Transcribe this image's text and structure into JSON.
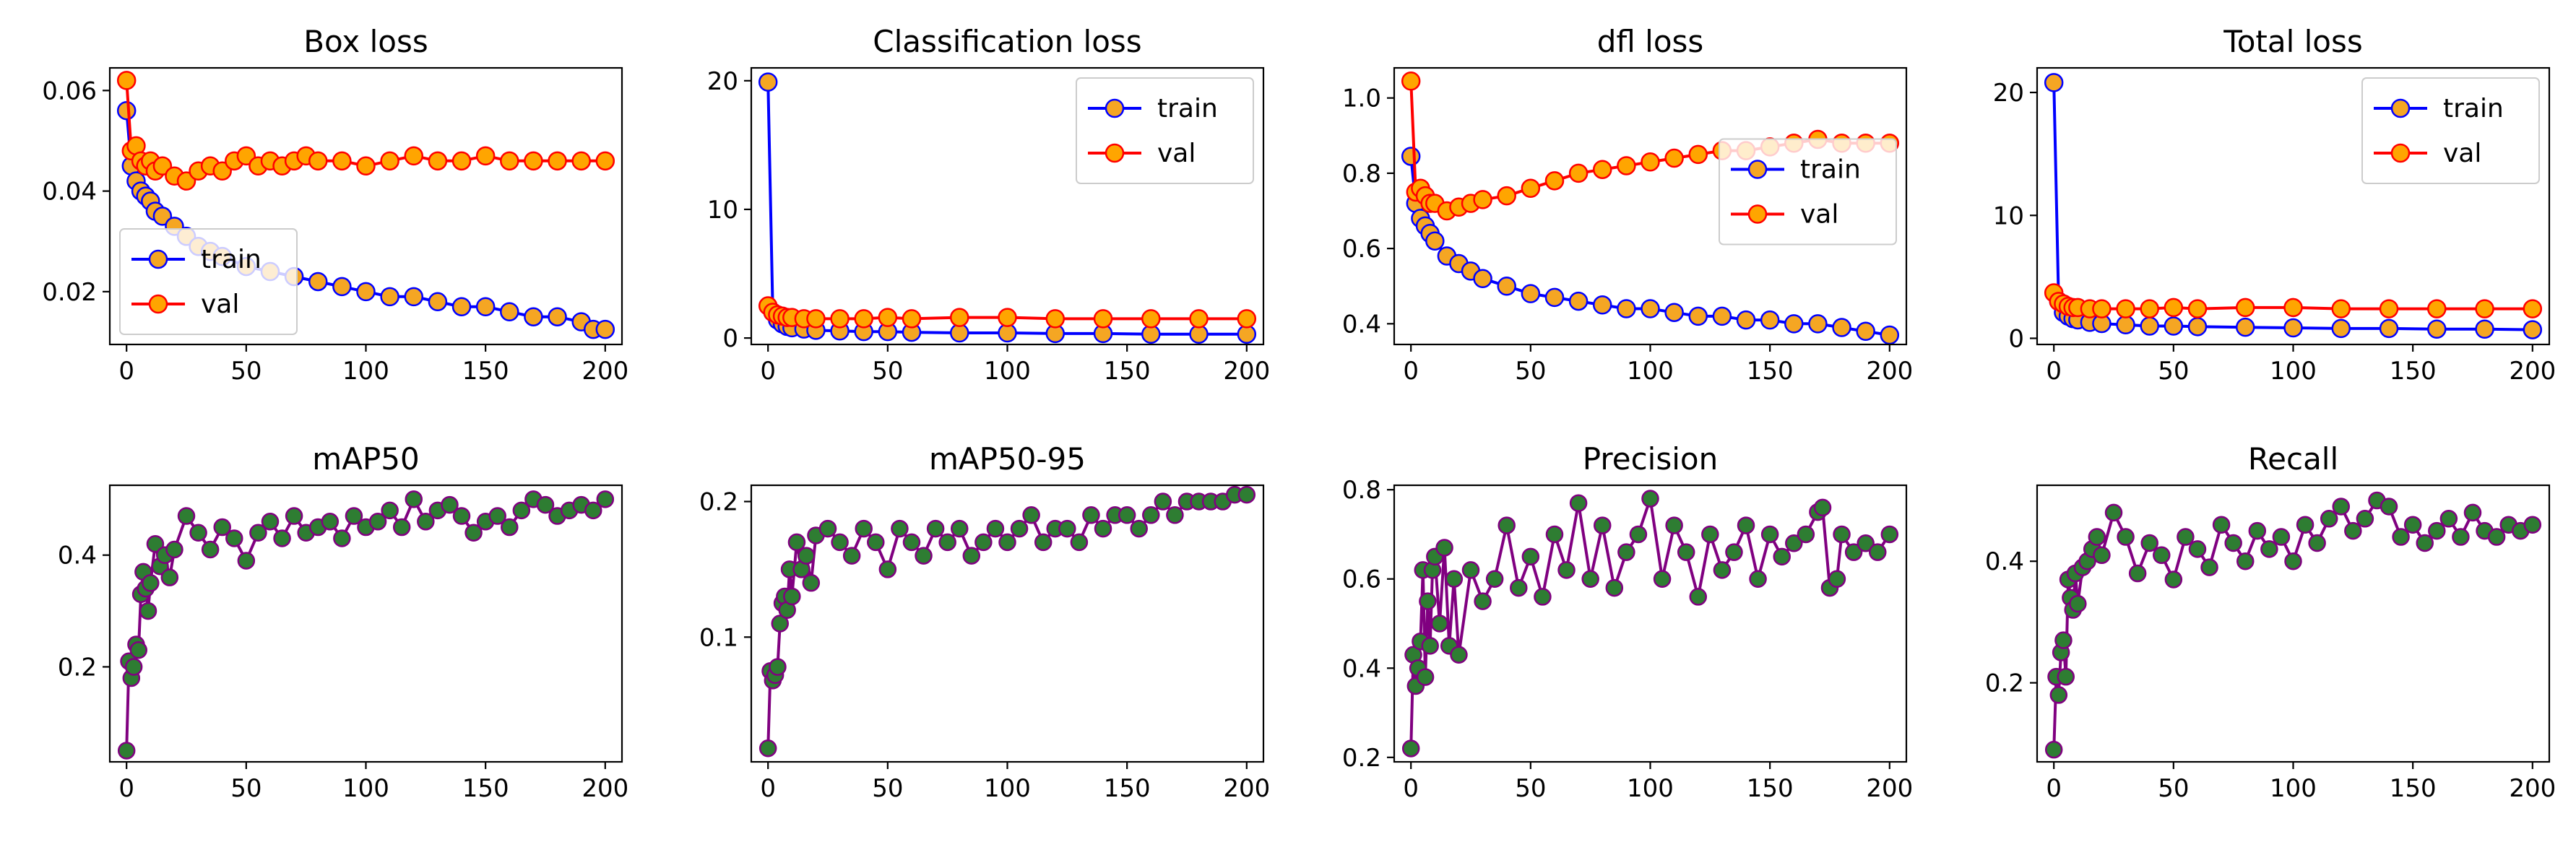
{
  "colors": {
    "train_line": "#0000ff",
    "train_marker_face": "#f5a623",
    "val_line": "#ff0000",
    "val_marker_face": "#ffa500",
    "metric_line": "#800080",
    "metric_marker_face": "#2e7d32"
  },
  "chart_data": [
    {
      "type": "line",
      "title": "Box loss",
      "xlim": [
        -7,
        207
      ],
      "ylim": [
        0.0095,
        0.0645
      ],
      "xticks": [
        0,
        50,
        100,
        150,
        200
      ],
      "yticks": [
        0.02,
        0.04,
        0.06
      ],
      "ytick_labels": [
        "0.02",
        "0.04",
        "0.06"
      ],
      "legend": "lower-left",
      "series": [
        {
          "name": "train",
          "role": "train",
          "x": [
            0,
            2,
            4,
            6,
            8,
            10,
            12,
            15,
            20,
            25,
            30,
            35,
            40,
            50,
            60,
            70,
            80,
            90,
            100,
            110,
            120,
            130,
            140,
            150,
            160,
            170,
            180,
            190,
            195,
            200
          ],
          "y": [
            0.056,
            0.045,
            0.042,
            0.04,
            0.039,
            0.038,
            0.036,
            0.035,
            0.033,
            0.031,
            0.029,
            0.028,
            0.027,
            0.025,
            0.024,
            0.023,
            0.022,
            0.021,
            0.02,
            0.019,
            0.019,
            0.018,
            0.017,
            0.017,
            0.016,
            0.015,
            0.015,
            0.014,
            0.0125,
            0.0125
          ]
        },
        {
          "name": "val",
          "role": "val",
          "x": [
            0,
            2,
            4,
            6,
            8,
            10,
            12,
            15,
            20,
            25,
            30,
            35,
            40,
            45,
            50,
            55,
            60,
            65,
            70,
            75,
            80,
            90,
            100,
            110,
            120,
            130,
            140,
            150,
            160,
            170,
            180,
            190,
            200
          ],
          "y": [
            0.062,
            0.048,
            0.049,
            0.046,
            0.045,
            0.046,
            0.044,
            0.045,
            0.043,
            0.042,
            0.044,
            0.045,
            0.044,
            0.046,
            0.047,
            0.045,
            0.046,
            0.045,
            0.046,
            0.047,
            0.046,
            0.046,
            0.045,
            0.046,
            0.047,
            0.046,
            0.046,
            0.047,
            0.046,
            0.046,
            0.046,
            0.046,
            0.046
          ]
        }
      ]
    },
    {
      "type": "line",
      "title": "Classification loss",
      "xlim": [
        -7,
        207
      ],
      "ylim": [
        -0.5,
        21
      ],
      "xticks": [
        0,
        50,
        100,
        150,
        200
      ],
      "yticks": [
        0,
        10,
        20
      ],
      "ytick_labels": [
        "0",
        "10",
        "20"
      ],
      "legend": "upper-right",
      "series": [
        {
          "name": "train",
          "role": "train",
          "x": [
            0,
            2,
            4,
            6,
            8,
            10,
            15,
            20,
            30,
            40,
            50,
            60,
            80,
            100,
            120,
            140,
            160,
            180,
            200
          ],
          "y": [
            19.9,
            2.0,
            1.4,
            1.1,
            0.9,
            0.8,
            0.7,
            0.6,
            0.55,
            0.5,
            0.5,
            0.45,
            0.4,
            0.4,
            0.35,
            0.35,
            0.3,
            0.3,
            0.3
          ]
        },
        {
          "name": "val",
          "role": "val",
          "x": [
            0,
            2,
            4,
            6,
            8,
            10,
            15,
            20,
            30,
            40,
            50,
            60,
            80,
            100,
            120,
            140,
            160,
            180,
            200
          ],
          "y": [
            2.5,
            2.0,
            1.8,
            1.7,
            1.6,
            1.6,
            1.5,
            1.5,
            1.5,
            1.5,
            1.6,
            1.5,
            1.6,
            1.6,
            1.5,
            1.5,
            1.5,
            1.5,
            1.5
          ]
        }
      ]
    },
    {
      "type": "line",
      "title": "dfl loss",
      "xlim": [
        -7,
        207
      ],
      "ylim": [
        0.345,
        1.08
      ],
      "xticks": [
        0,
        50,
        100,
        150,
        200
      ],
      "yticks": [
        0.4,
        0.6,
        0.8,
        1.0
      ],
      "ytick_labels": [
        "0.4",
        "0.6",
        "0.8",
        "1.0"
      ],
      "legend": "center-right",
      "series": [
        {
          "name": "train",
          "role": "train",
          "x": [
            0,
            2,
            4,
            6,
            8,
            10,
            15,
            20,
            25,
            30,
            40,
            50,
            60,
            70,
            80,
            90,
            100,
            110,
            120,
            130,
            140,
            150,
            160,
            170,
            180,
            190,
            200
          ],
          "y": [
            0.845,
            0.72,
            0.68,
            0.66,
            0.64,
            0.62,
            0.58,
            0.56,
            0.54,
            0.52,
            0.5,
            0.48,
            0.47,
            0.46,
            0.45,
            0.44,
            0.44,
            0.43,
            0.42,
            0.42,
            0.41,
            0.41,
            0.4,
            0.4,
            0.39,
            0.38,
            0.37
          ]
        },
        {
          "name": "val",
          "role": "val",
          "x": [
            0,
            2,
            4,
            6,
            8,
            10,
            15,
            20,
            25,
            30,
            40,
            50,
            60,
            70,
            80,
            90,
            100,
            110,
            120,
            130,
            140,
            150,
            160,
            170,
            180,
            190,
            200
          ],
          "y": [
            1.045,
            0.75,
            0.76,
            0.74,
            0.72,
            0.72,
            0.7,
            0.71,
            0.72,
            0.73,
            0.74,
            0.76,
            0.78,
            0.8,
            0.81,
            0.82,
            0.83,
            0.84,
            0.85,
            0.86,
            0.86,
            0.87,
            0.88,
            0.89,
            0.88,
            0.88,
            0.88
          ]
        }
      ]
    },
    {
      "type": "line",
      "title": "Total loss",
      "xlim": [
        -7,
        207
      ],
      "ylim": [
        -0.5,
        22
      ],
      "xticks": [
        0,
        50,
        100,
        150,
        200
      ],
      "yticks": [
        0,
        10,
        20
      ],
      "ytick_labels": [
        "0",
        "10",
        "20"
      ],
      "legend": "upper-right",
      "series": [
        {
          "name": "train",
          "role": "train",
          "x": [
            0,
            2,
            4,
            6,
            8,
            10,
            15,
            20,
            30,
            40,
            50,
            60,
            80,
            100,
            120,
            140,
            160,
            180,
            200
          ],
          "y": [
            20.8,
            3.0,
            2.1,
            1.8,
            1.6,
            1.5,
            1.3,
            1.2,
            1.1,
            1.0,
            1.0,
            0.95,
            0.9,
            0.85,
            0.8,
            0.8,
            0.75,
            0.75,
            0.7
          ]
        },
        {
          "name": "val",
          "role": "val",
          "x": [
            0,
            2,
            4,
            6,
            8,
            10,
            15,
            20,
            30,
            40,
            50,
            60,
            80,
            100,
            120,
            140,
            160,
            180,
            200
          ],
          "y": [
            3.7,
            3.0,
            2.8,
            2.6,
            2.5,
            2.5,
            2.4,
            2.4,
            2.4,
            2.4,
            2.5,
            2.4,
            2.5,
            2.5,
            2.4,
            2.4,
            2.4,
            2.4,
            2.4
          ]
        }
      ]
    },
    {
      "type": "line",
      "title": "mAP50",
      "xlim": [
        -7,
        207
      ],
      "ylim": [
        0.03,
        0.525
      ],
      "xticks": [
        0,
        50,
        100,
        150,
        200
      ],
      "yticks": [
        0.2,
        0.4
      ],
      "ytick_labels": [
        "0.2",
        "0.4"
      ],
      "legend": "none",
      "series": [
        {
          "role": "metric",
          "x": [
            0,
            1,
            2,
            3,
            4,
            5,
            6,
            7,
            8,
            9,
            10,
            12,
            14,
            16,
            18,
            20,
            25,
            30,
            35,
            40,
            45,
            50,
            55,
            60,
            65,
            70,
            75,
            80,
            85,
            90,
            95,
            100,
            105,
            110,
            115,
            120,
            125,
            130,
            135,
            140,
            145,
            150,
            155,
            160,
            165,
            170,
            175,
            180,
            185,
            190,
            195,
            200
          ],
          "y": [
            0.05,
            0.21,
            0.18,
            0.2,
            0.24,
            0.23,
            0.33,
            0.37,
            0.34,
            0.3,
            0.35,
            0.42,
            0.38,
            0.4,
            0.36,
            0.41,
            0.47,
            0.44,
            0.41,
            0.45,
            0.43,
            0.39,
            0.44,
            0.46,
            0.43,
            0.47,
            0.44,
            0.45,
            0.46,
            0.43,
            0.47,
            0.45,
            0.46,
            0.48,
            0.45,
            0.5,
            0.46,
            0.48,
            0.49,
            0.47,
            0.44,
            0.46,
            0.47,
            0.45,
            0.48,
            0.5,
            0.49,
            0.47,
            0.48,
            0.49,
            0.48,
            0.5
          ]
        }
      ]
    },
    {
      "type": "line",
      "title": "mAP50-95",
      "xlim": [
        -7,
        207
      ],
      "ylim": [
        0.008,
        0.212
      ],
      "xticks": [
        0,
        50,
        100,
        150,
        200
      ],
      "yticks": [
        0.1,
        0.2
      ],
      "ytick_labels": [
        "0.1",
        "0.2"
      ],
      "legend": "none",
      "series": [
        {
          "role": "metric",
          "x": [
            0,
            1,
            2,
            3,
            4,
            5,
            6,
            7,
            8,
            9,
            10,
            12,
            14,
            16,
            18,
            20,
            25,
            30,
            35,
            40,
            45,
            50,
            55,
            60,
            65,
            70,
            75,
            80,
            85,
            90,
            95,
            100,
            105,
            110,
            115,
            120,
            125,
            130,
            135,
            140,
            145,
            150,
            155,
            160,
            165,
            170,
            175,
            180,
            185,
            190,
            195,
            200
          ],
          "y": [
            0.018,
            0.075,
            0.068,
            0.072,
            0.078,
            0.11,
            0.125,
            0.13,
            0.12,
            0.15,
            0.13,
            0.17,
            0.15,
            0.16,
            0.14,
            0.175,
            0.18,
            0.17,
            0.16,
            0.18,
            0.17,
            0.15,
            0.18,
            0.17,
            0.16,
            0.18,
            0.17,
            0.18,
            0.16,
            0.17,
            0.18,
            0.17,
            0.18,
            0.19,
            0.17,
            0.18,
            0.18,
            0.17,
            0.19,
            0.18,
            0.19,
            0.19,
            0.18,
            0.19,
            0.2,
            0.19,
            0.2,
            0.2,
            0.2,
            0.2,
            0.205,
            0.205
          ]
        }
      ]
    },
    {
      "type": "line",
      "title": "Precision",
      "xlim": [
        -7,
        207
      ],
      "ylim": [
        0.19,
        0.81
      ],
      "xticks": [
        0,
        50,
        100,
        150,
        200
      ],
      "yticks": [
        0.2,
        0.4,
        0.6,
        0.8
      ],
      "ytick_labels": [
        "0.2",
        "0.4",
        "0.6",
        "0.8"
      ],
      "legend": "none",
      "series": [
        {
          "role": "metric",
          "x": [
            0,
            1,
            2,
            3,
            4,
            5,
            6,
            7,
            8,
            9,
            10,
            12,
            14,
            16,
            18,
            20,
            25,
            30,
            35,
            40,
            45,
            50,
            55,
            60,
            65,
            70,
            75,
            80,
            85,
            90,
            95,
            100,
            105,
            110,
            115,
            120,
            125,
            130,
            135,
            140,
            145,
            150,
            155,
            160,
            165,
            170,
            172,
            175,
            178,
            180,
            185,
            190,
            195,
            200
          ],
          "y": [
            0.22,
            0.43,
            0.36,
            0.4,
            0.46,
            0.62,
            0.38,
            0.55,
            0.45,
            0.62,
            0.65,
            0.5,
            0.67,
            0.45,
            0.6,
            0.43,
            0.62,
            0.55,
            0.6,
            0.72,
            0.58,
            0.65,
            0.56,
            0.7,
            0.62,
            0.77,
            0.6,
            0.72,
            0.58,
            0.66,
            0.7,
            0.78,
            0.6,
            0.72,
            0.66,
            0.56,
            0.7,
            0.62,
            0.66,
            0.72,
            0.6,
            0.7,
            0.65,
            0.68,
            0.7,
            0.75,
            0.76,
            0.58,
            0.6,
            0.7,
            0.66,
            0.68,
            0.66,
            0.7
          ]
        }
      ]
    },
    {
      "type": "line",
      "title": "Recall",
      "xlim": [
        -7,
        207
      ],
      "ylim": [
        0.07,
        0.525
      ],
      "xticks": [
        0,
        50,
        100,
        150,
        200
      ],
      "yticks": [
        0.2,
        0.4
      ],
      "ytick_labels": [
        "0.2",
        "0.4"
      ],
      "legend": "none",
      "series": [
        {
          "role": "metric",
          "x": [
            0,
            1,
            2,
            3,
            4,
            5,
            6,
            7,
            8,
            9,
            10,
            12,
            14,
            16,
            18,
            20,
            25,
            30,
            35,
            40,
            45,
            50,
            55,
            60,
            65,
            70,
            75,
            80,
            85,
            90,
            95,
            100,
            105,
            110,
            115,
            120,
            125,
            130,
            135,
            140,
            145,
            150,
            155,
            160,
            165,
            170,
            175,
            180,
            185,
            190,
            195,
            200
          ],
          "y": [
            0.09,
            0.21,
            0.18,
            0.25,
            0.27,
            0.21,
            0.37,
            0.34,
            0.32,
            0.38,
            0.33,
            0.39,
            0.4,
            0.42,
            0.44,
            0.41,
            0.48,
            0.44,
            0.38,
            0.43,
            0.41,
            0.37,
            0.44,
            0.42,
            0.39,
            0.46,
            0.43,
            0.4,
            0.45,
            0.42,
            0.44,
            0.4,
            0.46,
            0.43,
            0.47,
            0.49,
            0.45,
            0.47,
            0.5,
            0.49,
            0.44,
            0.46,
            0.43,
            0.45,
            0.47,
            0.44,
            0.48,
            0.45,
            0.44,
            0.46,
            0.45,
            0.46
          ]
        }
      ]
    }
  ]
}
